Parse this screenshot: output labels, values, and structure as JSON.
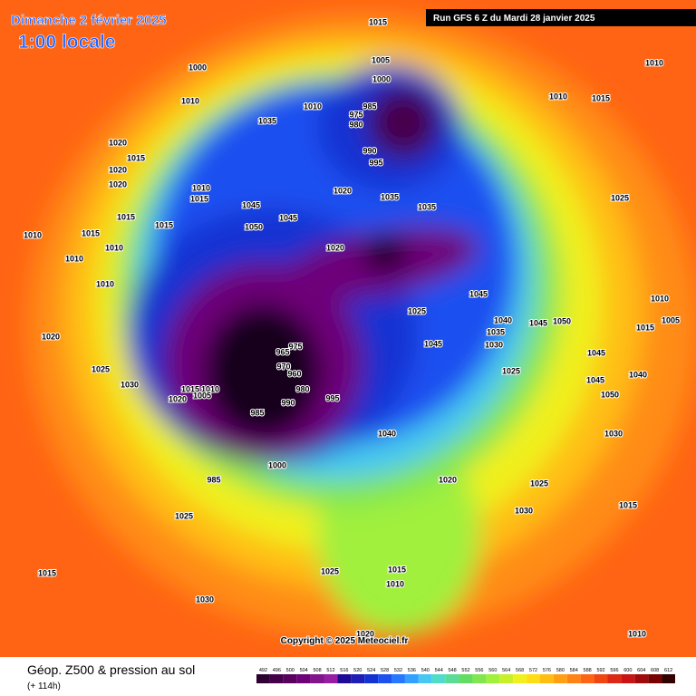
{
  "header": {
    "title": "Dimanche 2 février 2025",
    "subtitle": "1:00 locale",
    "run": "Run GFS 6 Z du Mardi 28 janvier 2025"
  },
  "copyright": "Copyright © 2025 Meteociel.fr",
  "footer": {
    "title": "Géop. Z500 & pression au sol",
    "subtitle": "(+ 114h)"
  },
  "scale": {
    "values": [
      492,
      496,
      500,
      504,
      508,
      512,
      516,
      520,
      524,
      528,
      532,
      536,
      540,
      544,
      548,
      552,
      556,
      560,
      564,
      568,
      572,
      576,
      580,
      584,
      588,
      592,
      596,
      600,
      604,
      608,
      612
    ],
    "colors": [
      "#2d0032",
      "#46004b",
      "#5a005f",
      "#6e0078",
      "#82148c",
      "#961ea0",
      "#1e0a96",
      "#1e1eb4",
      "#1432d2",
      "#1e50f0",
      "#2878ff",
      "#32a0ff",
      "#46c8f0",
      "#50dcc8",
      "#5adc96",
      "#64dc64",
      "#82e650",
      "#a0f03c",
      "#c8f028",
      "#f0f01e",
      "#ffdc14",
      "#ffbe14",
      "#ffa014",
      "#ff8214",
      "#ff6414",
      "#f04614",
      "#dc2814",
      "#c81414",
      "#a00a0a",
      "#780000",
      "#320000"
    ]
  },
  "isobar_labels": [
    1015,
    1010,
    1005,
    1000,
    1000,
    1010,
    1035,
    1010,
    985,
    975,
    980,
    990,
    995,
    1010,
    1015,
    1020,
    1015,
    1020,
    1020,
    1010,
    1015,
    1045,
    1020,
    1035,
    1035,
    1025,
    1015,
    1050,
    1045,
    1015,
    1010,
    1015,
    1010,
    1020,
    1010,
    1010,
    1045,
    1010,
    1025,
    1040,
    1045,
    1050,
    1035,
    1005,
    1015,
    1020,
    1045,
    1030,
    975,
    965,
    970,
    960,
    1045,
    1025,
    1025,
    1040,
    1030,
    1015,
    1010,
    1005,
    980,
    995,
    1020,
    1045,
    1050,
    990,
    985,
    1040,
    1030,
    1000,
    985,
    1020,
    1025,
    1030,
    1015,
    1025,
    1015,
    1015,
    1025,
    1010,
    1030,
    1020,
    1010
  ]
}
